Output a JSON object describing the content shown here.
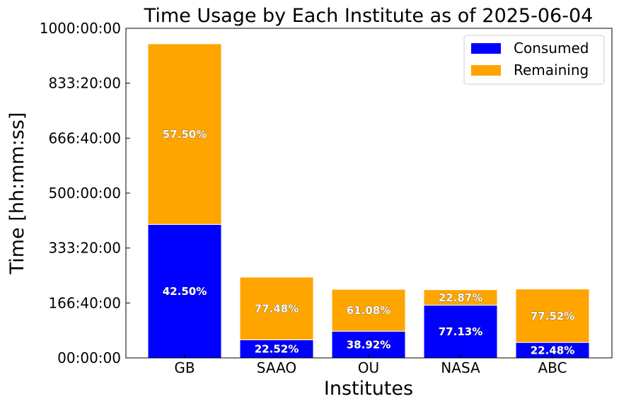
{
  "chart_data": {
    "type": "bar",
    "stacked": true,
    "title": "Time Usage by Each Institute as of 2025-06-04",
    "xlabel": "Institutes",
    "ylabel": "Time [hh:mm:ss]",
    "ylim_hours": [
      0,
      1000
    ],
    "yticks_hours": [
      0,
      166.6667,
      333.3333,
      500,
      666.6667,
      833.3333,
      1000
    ],
    "ytick_labels": [
      "00:00:00",
      "166:40:00",
      "333:20:00",
      "500:00:00",
      "666:40:00",
      "833:20:00",
      "1000:00:00"
    ],
    "categories": [
      "GB",
      "SAAO",
      "OU",
      "NASA",
      "ABC"
    ],
    "series": [
      {
        "name": "Consumed",
        "color": "#0000ff",
        "values_hours": [
          405,
          55,
          81,
          160,
          47
        ],
        "percent_labels": [
          "42.50%",
          "22.52%",
          "38.92%",
          "77.13%",
          "22.48%"
        ]
      },
      {
        "name": "Remaining",
        "color": "#ffa500",
        "values_hours": [
          548,
          190,
          127,
          47,
          162
        ],
        "percent_labels": [
          "57.50%",
          "77.48%",
          "61.08%",
          "22.87%",
          "77.52%"
        ]
      }
    ],
    "legend_position": "top-right",
    "grid": false
  }
}
